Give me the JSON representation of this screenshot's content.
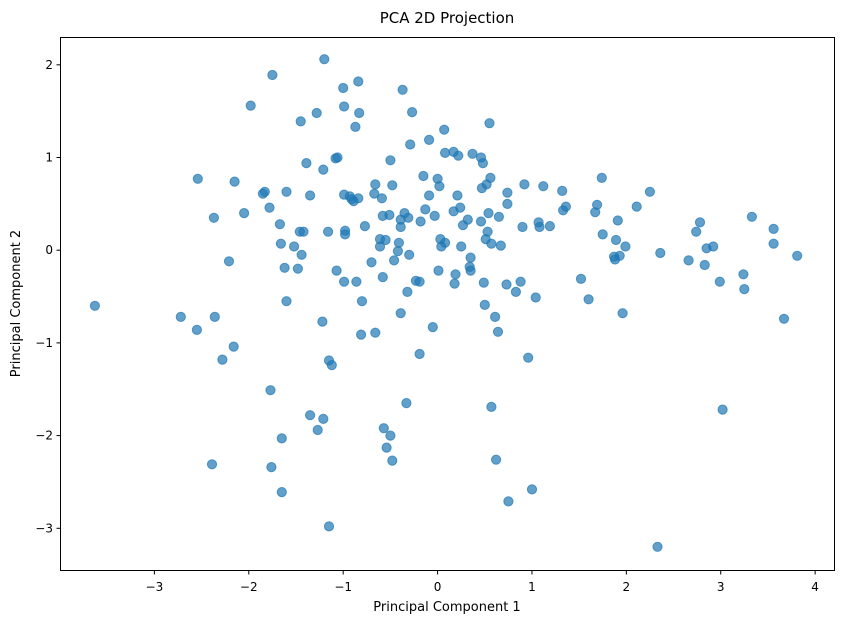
{
  "chart_data": {
    "type": "scatter",
    "title": "PCA 2D Projection",
    "xlabel": "Principal Component 1",
    "ylabel": "Principal Component 2",
    "xlim": [
      -4.0,
      4.2
    ],
    "ylim": [
      -3.45,
      2.3
    ],
    "xticks": [
      -3,
      -2,
      -1,
      0,
      1,
      2,
      3,
      4
    ],
    "yticks": [
      -3,
      -2,
      -1,
      0,
      1,
      2
    ],
    "xtick_labels": [
      "−3",
      "−2",
      "−1",
      "0",
      "1",
      "2",
      "3",
      "4"
    ],
    "ytick_labels": [
      "−3",
      "−2",
      "−1",
      "0",
      "1",
      "2"
    ],
    "grid": false,
    "legend": "none",
    "marker_color": "#1f77b4",
    "marker_alpha": 0.7,
    "series": [
      {
        "points": [
          [
            -3.63,
            -0.6
          ],
          [
            -2.72,
            -0.72
          ],
          [
            -2.55,
            -0.86
          ],
          [
            -2.54,
            0.77
          ],
          [
            -2.37,
            0.35
          ],
          [
            -2.36,
            -0.72
          ],
          [
            -2.39,
            -2.31
          ],
          [
            -2.28,
            -1.18
          ],
          [
            -2.21,
            -0.12
          ],
          [
            -2.16,
            -1.04
          ],
          [
            -2.15,
            0.74
          ],
          [
            -2.05,
            0.4
          ],
          [
            -1.98,
            1.56
          ],
          [
            -1.85,
            0.61
          ],
          [
            -1.83,
            0.63
          ],
          [
            -1.78,
            0.46
          ],
          [
            -1.75,
            1.89
          ],
          [
            -1.77,
            -1.51
          ],
          [
            -1.76,
            -2.34
          ],
          [
            -1.67,
            0.28
          ],
          [
            -1.66,
            0.07
          ],
          [
            -1.65,
            -2.03
          ],
          [
            -1.65,
            -2.61
          ],
          [
            -1.62,
            -0.19
          ],
          [
            -1.6,
            0.63
          ],
          [
            -1.6,
            -0.55
          ],
          [
            -1.52,
            0.04
          ],
          [
            -1.48,
            -0.2
          ],
          [
            -1.46,
            0.2
          ],
          [
            -1.45,
            1.39
          ],
          [
            -1.44,
            -0.05
          ],
          [
            -1.42,
            0.2
          ],
          [
            -1.39,
            0.94
          ],
          [
            -1.35,
            0.59
          ],
          [
            -1.35,
            -1.78
          ],
          [
            -1.28,
            1.48
          ],
          [
            -1.27,
            -1.94
          ],
          [
            -1.21,
            0.87
          ],
          [
            -1.21,
            -1.82
          ],
          [
            -1.22,
            -0.77
          ],
          [
            -1.2,
            2.06
          ],
          [
            -1.16,
            0.2
          ],
          [
            -1.15,
            -1.19
          ],
          [
            -1.15,
            -2.98
          ],
          [
            -1.12,
            -1.24
          ],
          [
            -1.08,
            0.99
          ],
          [
            -1.06,
            1.0
          ],
          [
            -1.07,
            -0.22
          ],
          [
            -1.0,
            1.75
          ],
          [
            -0.99,
            1.55
          ],
          [
            -0.99,
            0.6
          ],
          [
            -0.98,
            0.21
          ],
          [
            -0.98,
            0.17
          ],
          [
            -0.99,
            -0.34
          ],
          [
            -0.93,
            0.58
          ],
          [
            -0.91,
            0.55
          ],
          [
            -0.89,
            0.53
          ],
          [
            -0.87,
            1.33
          ],
          [
            -0.84,
            1.82
          ],
          [
            -0.84,
            0.56
          ],
          [
            -0.83,
            1.48
          ],
          [
            -0.86,
            -0.34
          ],
          [
            -0.8,
            -0.55
          ],
          [
            -0.81,
            -0.91
          ],
          [
            -0.77,
            0.26
          ],
          [
            -0.7,
            -0.13
          ],
          [
            -0.67,
            0.61
          ],
          [
            -0.66,
            0.71
          ],
          [
            -0.66,
            -0.89
          ],
          [
            -0.61,
            0.12
          ],
          [
            -0.61,
            0.04
          ],
          [
            -0.59,
            0.56
          ],
          [
            -0.58,
            0.37
          ],
          [
            -0.58,
            -0.29
          ],
          [
            -0.57,
            -1.92
          ],
          [
            -0.55,
            0.11
          ],
          [
            -0.54,
            -2.13
          ],
          [
            -0.51,
            0.38
          ],
          [
            -0.5,
            0.97
          ],
          [
            -0.5,
            -2.0
          ],
          [
            -0.48,
            0.7
          ],
          [
            -0.48,
            -2.27
          ],
          [
            -0.46,
            -0.11
          ],
          [
            -0.42,
            -0.01
          ],
          [
            -0.41,
            0.08
          ],
          [
            -0.39,
            0.33
          ],
          [
            -0.39,
            0.25
          ],
          [
            -0.37,
            1.73
          ],
          [
            -0.39,
            -0.68
          ],
          [
            -0.35,
            0.4
          ],
          [
            -0.33,
            -1.65
          ],
          [
            -0.32,
            -0.45
          ],
          [
            -0.31,
            0.35
          ],
          [
            -0.3,
            -0.05
          ],
          [
            -0.29,
            1.14
          ],
          [
            -0.27,
            1.49
          ],
          [
            -0.23,
            -0.33
          ],
          [
            -0.19,
            -0.34
          ],
          [
            -0.19,
            -1.12
          ],
          [
            -0.18,
            0.31
          ],
          [
            -0.15,
            0.8
          ],
          [
            -0.13,
            0.44
          ],
          [
            -0.09,
            1.19
          ],
          [
            -0.09,
            0.59
          ],
          [
            -0.05,
            -0.83
          ],
          [
            -0.03,
            0.37
          ],
          [
            0.0,
            0.77
          ],
          [
            0.01,
            -0.22
          ],
          [
            0.02,
            0.69
          ],
          [
            0.03,
            0.12
          ],
          [
            0.04,
            0.04
          ],
          [
            0.07,
            1.3
          ],
          [
            0.08,
            1.05
          ],
          [
            0.08,
            0.08
          ],
          [
            0.17,
            1.06
          ],
          [
            0.17,
            0.42
          ],
          [
            0.18,
            -0.36
          ],
          [
            0.19,
            -0.26
          ],
          [
            0.21,
            0.59
          ],
          [
            0.22,
            1.02
          ],
          [
            0.24,
            0.46
          ],
          [
            0.25,
            0.04
          ],
          [
            0.27,
            0.27
          ],
          [
            0.32,
            0.33
          ],
          [
            0.34,
            -0.18
          ],
          [
            0.35,
            -0.08
          ],
          [
            0.35,
            -0.22
          ],
          [
            0.37,
            1.04
          ],
          [
            0.46,
            1.0
          ],
          [
            0.46,
            0.31
          ],
          [
            0.47,
            0.67
          ],
          [
            0.48,
            0.94
          ],
          [
            0.49,
            -0.35
          ],
          [
            0.5,
            -0.59
          ],
          [
            0.51,
            0.12
          ],
          [
            0.52,
            0.71
          ],
          [
            0.53,
            0.2
          ],
          [
            0.54,
            0.4
          ],
          [
            0.55,
            1.37
          ],
          [
            0.56,
            0.78
          ],
          [
            0.57,
            0.07
          ],
          [
            0.57,
            -1.69
          ],
          [
            0.61,
            -0.72
          ],
          [
            0.62,
            -2.26
          ],
          [
            0.64,
            -0.88
          ],
          [
            0.65,
            0.36
          ],
          [
            0.67,
            0.05
          ],
          [
            0.73,
            -0.37
          ],
          [
            0.74,
            0.62
          ],
          [
            0.74,
            0.5
          ],
          [
            0.75,
            -2.71
          ],
          [
            0.83,
            -0.45
          ],
          [
            0.88,
            -0.34
          ],
          [
            0.9,
            0.25
          ],
          [
            0.92,
            0.71
          ],
          [
            0.96,
            -1.16
          ],
          [
            1.0,
            -2.58
          ],
          [
            1.04,
            -0.51
          ],
          [
            1.07,
            0.3
          ],
          [
            1.08,
            0.25
          ],
          [
            1.12,
            0.69
          ],
          [
            1.19,
            0.26
          ],
          [
            1.32,
            0.64
          ],
          [
            1.33,
            0.43
          ],
          [
            1.36,
            0.47
          ],
          [
            1.52,
            -0.31
          ],
          [
            1.6,
            -0.53
          ],
          [
            1.67,
            0.41
          ],
          [
            1.69,
            0.49
          ],
          [
            1.74,
            0.78
          ],
          [
            1.75,
            0.17
          ],
          [
            1.87,
            -0.07
          ],
          [
            1.88,
            -0.1
          ],
          [
            1.89,
            0.11
          ],
          [
            1.91,
            0.32
          ],
          [
            1.93,
            -0.06
          ],
          [
            1.96,
            -0.68
          ],
          [
            1.99,
            0.04
          ],
          [
            2.11,
            0.47
          ],
          [
            2.25,
            0.63
          ],
          [
            2.33,
            -3.2
          ],
          [
            2.36,
            -0.03
          ],
          [
            2.66,
            -0.11
          ],
          [
            2.74,
            0.2
          ],
          [
            2.78,
            0.3
          ],
          [
            2.83,
            -0.16
          ],
          [
            2.85,
            0.02
          ],
          [
            2.92,
            0.04
          ],
          [
            2.99,
            -0.34
          ],
          [
            3.02,
            -1.72
          ],
          [
            3.24,
            -0.26
          ],
          [
            3.25,
            -0.42
          ],
          [
            3.33,
            0.36
          ],
          [
            3.56,
            0.23
          ],
          [
            3.56,
            0.07
          ],
          [
            3.67,
            -0.74
          ],
          [
            3.81,
            -0.06
          ]
        ]
      }
    ]
  }
}
